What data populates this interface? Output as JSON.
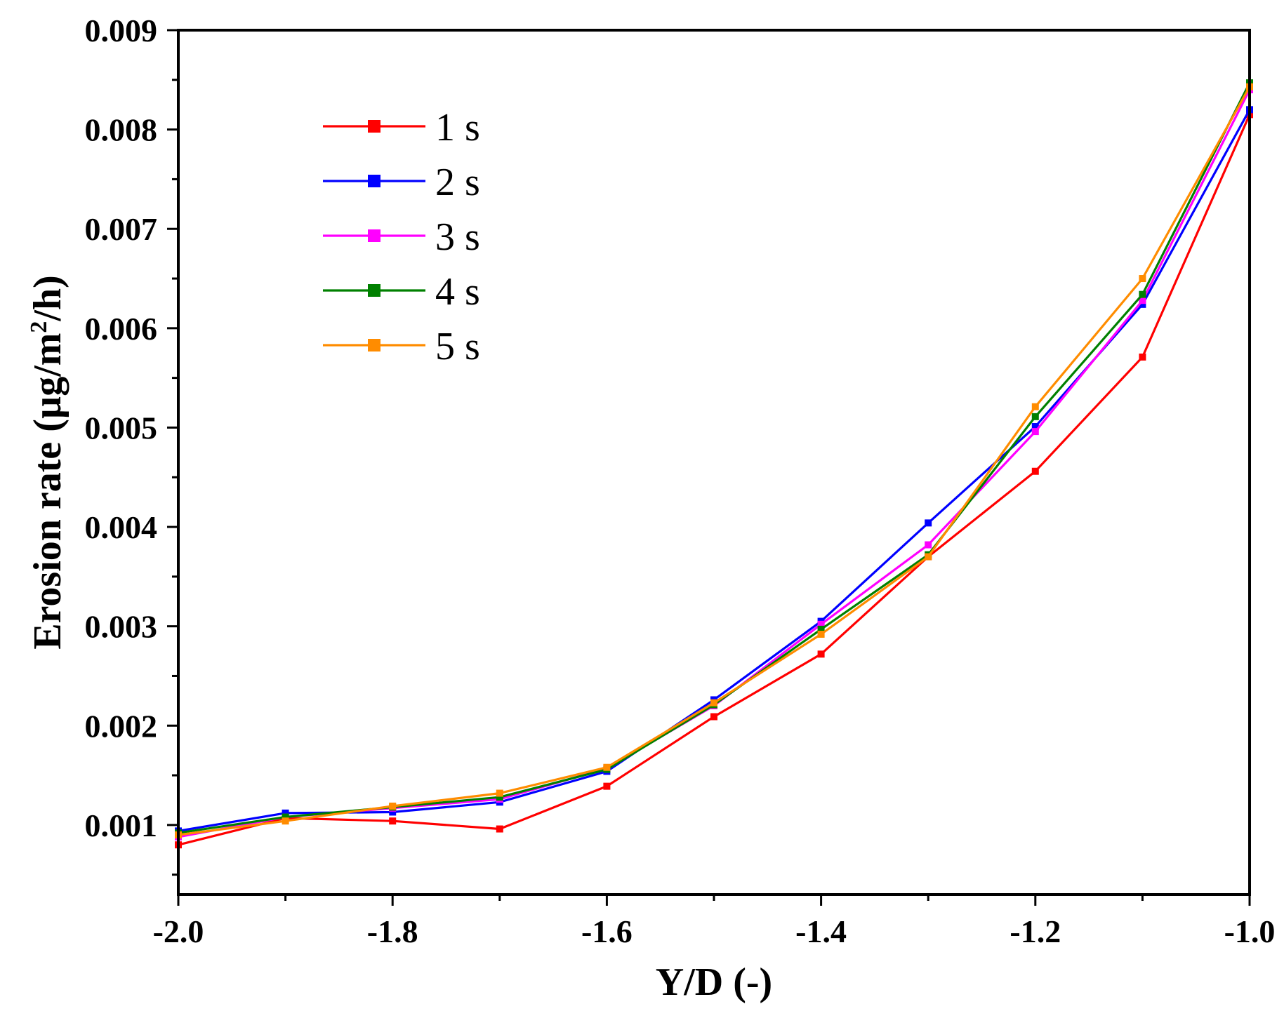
{
  "chart_data": {
    "type": "line",
    "title": "",
    "xlabel": "Y/D (-)",
    "ylabel_prefix": "Erosion rate (µg/m",
    "ylabel_sup": "2",
    "ylabel_suffix": "/h)",
    "xlim": [
      -2.0,
      -1.0
    ],
    "ylim": [
      0.0003,
      0.009
    ],
    "x_ticks": [
      -2.0,
      -1.8,
      -1.6,
      -1.4,
      -1.2,
      -1.0
    ],
    "x_tick_labels": [
      "-2.0",
      "-1.8",
      "-1.6",
      "-1.4",
      "-1.2",
      "-1.0"
    ],
    "y_ticks": [
      0.001,
      0.002,
      0.003,
      0.004,
      0.005,
      0.006,
      0.007,
      0.008,
      0.009
    ],
    "y_tick_labels": [
      "0.001",
      "0.002",
      "0.003",
      "0.004",
      "0.005",
      "0.006",
      "0.007",
      "0.008",
      "0.009"
    ],
    "legend_position": "top-left",
    "x": [
      -2.0,
      -1.9,
      -1.8,
      -1.7,
      -1.6,
      -1.5,
      -1.4,
      -1.3,
      -1.2,
      -1.1,
      -1.0
    ],
    "series": [
      {
        "name": "1 s",
        "color": "#ff0000",
        "values": [
          0.0008,
          0.00107,
          0.00104,
          0.00096,
          0.00139,
          0.00209,
          0.00272,
          0.0037,
          0.00456,
          0.00571,
          0.00815
        ]
      },
      {
        "name": "2 s",
        "color": "#0000ff",
        "values": [
          0.00094,
          0.00112,
          0.00113,
          0.00123,
          0.00154,
          0.00226,
          0.00305,
          0.00404,
          0.00501,
          0.00624,
          0.0082
        ]
      },
      {
        "name": "3 s",
        "color": "#ff00ff",
        "values": [
          0.00088,
          0.00108,
          0.00117,
          0.00126,
          0.00157,
          0.0022,
          0.00302,
          0.00382,
          0.00496,
          0.00628,
          0.0084
        ]
      },
      {
        "name": "4 s",
        "color": "#008000",
        "values": [
          0.00092,
          0.00108,
          0.00118,
          0.00128,
          0.00156,
          0.00221,
          0.00297,
          0.00372,
          0.00511,
          0.00634,
          0.00847
        ]
      },
      {
        "name": "5 s",
        "color": "#ff8c00",
        "values": [
          0.0009,
          0.00104,
          0.00119,
          0.00132,
          0.00158,
          0.00223,
          0.00292,
          0.0037,
          0.00521,
          0.0065,
          0.00843
        ]
      }
    ]
  }
}
